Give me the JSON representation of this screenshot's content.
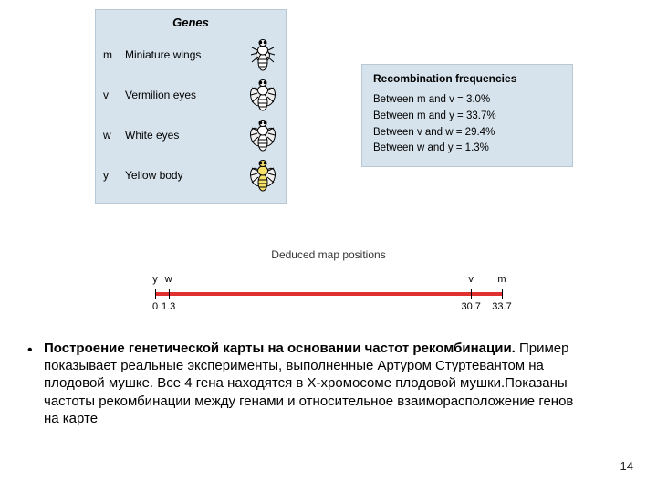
{
  "genes_panel": {
    "title": "Genes",
    "title_fontsize": 13,
    "background_color": "#d6e3ec",
    "border_color": "#b8c8d4",
    "rows": [
      {
        "symbol": "m",
        "desc": "Miniature wings",
        "body_fill": "#ffffff",
        "wing_scale": 0.55
      },
      {
        "symbol": "v",
        "desc": "Vermilion eyes",
        "body_fill": "#ffffff",
        "wing_scale": 1.0
      },
      {
        "symbol": "w",
        "desc": "White eyes",
        "body_fill": "#ffffff",
        "wing_scale": 1.0
      },
      {
        "symbol": "y",
        "desc": "Yellow body",
        "body_fill": "#f5e06a",
        "wing_scale": 1.0
      }
    ]
  },
  "freq_panel": {
    "title": "Recombination frequencies",
    "background_color": "#d6e3ec",
    "border_color": "#b8c8d4",
    "lines": [
      "Between m and v = 3.0%",
      "Between m and y = 33.7%",
      "Between v and w = 29.4%",
      "Between w and y = 1.3%"
    ]
  },
  "map": {
    "title": "Deduced map positions",
    "line_color": "#e03030",
    "axis_min": 0,
    "axis_max": 33.7,
    "ticks": [
      {
        "label_top": "y",
        "label_bot": "0",
        "pos": 0
      },
      {
        "label_top": "w",
        "label_bot": "1.3",
        "pos": 1.3
      },
      {
        "label_top": "v",
        "label_bot": "30.7",
        "pos": 30.7
      },
      {
        "label_top": "m",
        "label_bot": "33.7",
        "pos": 33.7
      }
    ]
  },
  "caption": {
    "bullet": "•",
    "bold": "Построение генетической карты на основании частот рекомбинации.",
    "rest": " Пример показывает реальные эксперименты, выполненные Артуром Стуртевантом на плодовой мушке. Все 4 гена находятся в X-хромосоме плодовой мушки.Показаны частоты рекомбинации между генами и относительное взаиморасположение генов на карте"
  },
  "page_number": "14"
}
